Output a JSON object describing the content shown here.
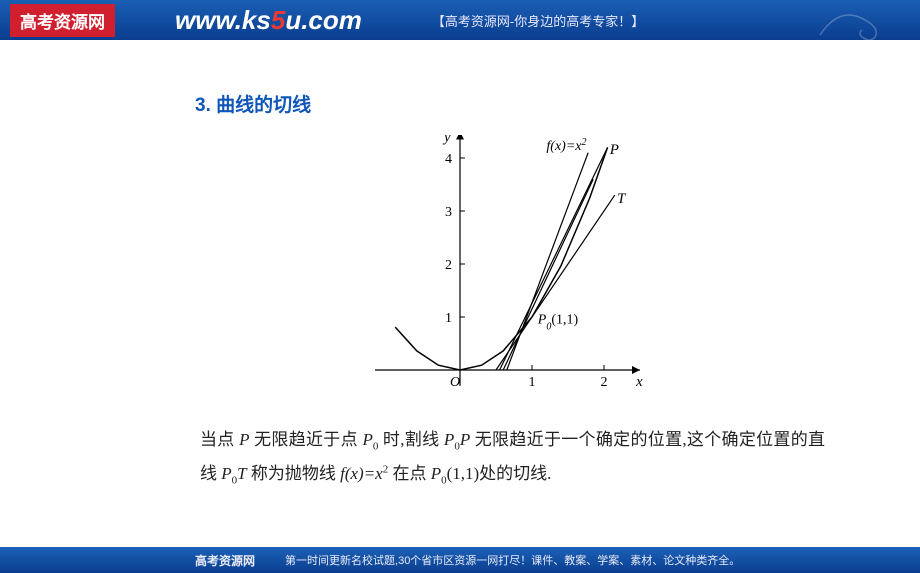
{
  "header": {
    "logo": "高考资源网",
    "url_prefix": "www.ks",
    "url_em": "5",
    "url_suffix": "u.com",
    "tagline": "【高考资源网-你身边的高考专家！】"
  },
  "content": {
    "section_number": "3.",
    "section_title": "曲线的切线",
    "paragraph_1": "当点 ",
    "paragraph_2": " 无限趋近于点 ",
    "paragraph_3": " 时,割线 ",
    "paragraph_4": " 无限趋近于一个确定的位置,这个确定位置的直线 ",
    "paragraph_5": " 称为抛物线 ",
    "paragraph_6": " 在点 ",
    "paragraph_7": "(1,1)处的切线.",
    "P": "P",
    "P0": "P",
    "sub0": "0",
    "T": "T",
    "fx": "f(x)=x",
    "sup2": "2"
  },
  "chart": {
    "type": "line",
    "y_label": "y",
    "x_label": "x",
    "origin_label": "O",
    "curve_label": "f(x)=x",
    "curve_sup": "2",
    "P_label": "P",
    "T_label": "T",
    "P0_label": "P",
    "P0_sub": "0",
    "P0_coords": "(1,1)",
    "x_ticks": [
      1,
      2
    ],
    "y_ticks": [
      1,
      2,
      3,
      4
    ],
    "xlim": [
      -1.3,
      2.5
    ],
    "ylim": [
      -0.3,
      4.5
    ],
    "line_color": "#000000",
    "background": "#ffffff",
    "axis_width": 1.2,
    "curve_width": 1.5,
    "parabola_points": [
      [
        -0.9,
        0.81
      ],
      [
        -0.6,
        0.36
      ],
      [
        -0.3,
        0.09
      ],
      [
        0,
        0
      ],
      [
        0.3,
        0.09
      ],
      [
        0.6,
        0.36
      ],
      [
        1.0,
        1.0
      ],
      [
        1.4,
        1.96
      ],
      [
        1.8,
        3.24
      ],
      [
        2.05,
        4.2
      ]
    ],
    "secant1": [
      [
        0.55,
        0
      ],
      [
        2.05,
        4.2
      ]
    ],
    "secant2": [
      [
        0.6,
        0
      ],
      [
        1.85,
        3.6
      ]
    ],
    "tangent": [
      [
        0.5,
        0
      ],
      [
        2.15,
        3.3
      ]
    ],
    "secant3": [
      [
        0.65,
        0
      ],
      [
        1.78,
        4.1
      ]
    ]
  },
  "footer": {
    "title": "高考资源网",
    "text": "第一时间更新名校试题,30个省市区资源一网打尽！课件、教案、学案、素材、论文种类齐全。"
  }
}
